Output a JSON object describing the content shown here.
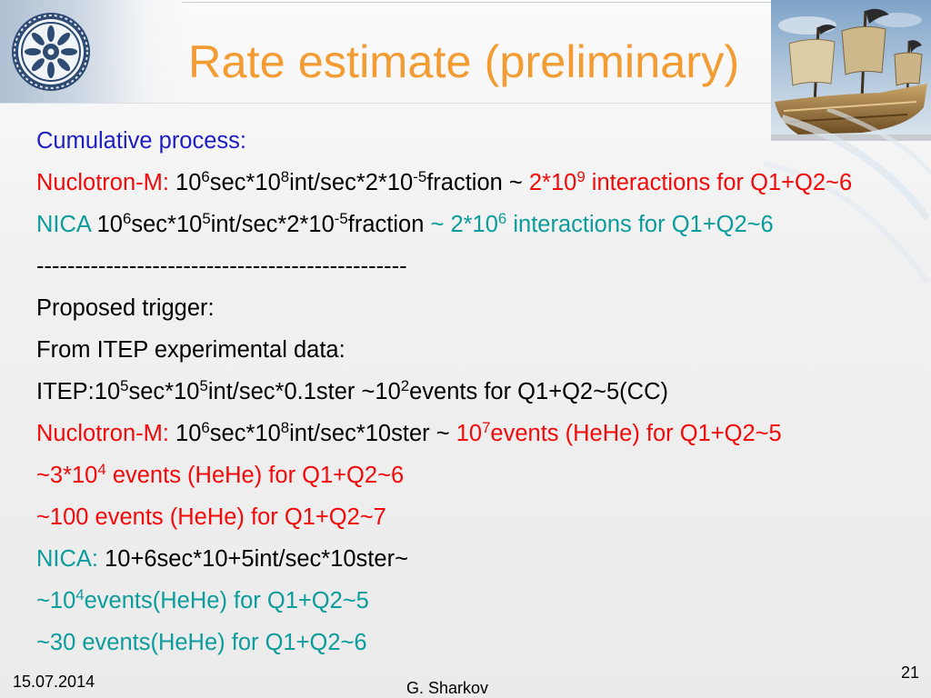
{
  "slide": {
    "title": "Rate estimate (preliminary)",
    "lines": [
      {
        "segments": [
          {
            "text": "Cumulative process:",
            "color": "blue"
          }
        ]
      },
      {
        "segments": [
          {
            "text": "Nuclotron-M: ",
            "color": "red"
          },
          {
            "text": "10",
            "color": "black"
          },
          {
            "text": "6",
            "color": "black",
            "sup": true
          },
          {
            "text": "sec*10",
            "color": "black"
          },
          {
            "text": "8",
            "color": "black",
            "sup": true
          },
          {
            "text": "int/sec*2*10",
            "color": "black"
          },
          {
            "text": "-5",
            "color": "black",
            "sup": true
          },
          {
            "text": "fraction ~ ",
            "color": "black"
          },
          {
            "text": "2*10",
            "color": "red"
          },
          {
            "text": "9",
            "color": "red",
            "sup": true
          },
          {
            "text": " interactions for Q1+Q2~6",
            "color": "red"
          }
        ]
      },
      {
        "segments": [
          {
            "text": "NICA ",
            "color": "teal"
          },
          {
            "text": "10",
            "color": "black"
          },
          {
            "text": "6",
            "color": "black",
            "sup": true
          },
          {
            "text": "sec*10",
            "color": "black"
          },
          {
            "text": "5",
            "color": "black",
            "sup": true
          },
          {
            "text": "int/sec*2*10",
            "color": "black"
          },
          {
            "text": "-5",
            "color": "black",
            "sup": true
          },
          {
            "text": "fraction ",
            "color": "black"
          },
          {
            "text": "~ 2*10",
            "color": "teal"
          },
          {
            "text": "6",
            "color": "teal",
            "sup": true
          },
          {
            "text": " interactions for Q1+Q2~6",
            "color": "teal"
          }
        ]
      },
      {
        "segments": [
          {
            "text": "------------------------------------------------",
            "color": "black"
          }
        ]
      },
      {
        "segments": [
          {
            "text": "Proposed trigger:",
            "color": "black"
          }
        ]
      },
      {
        "segments": [
          {
            "text": "From ITEP experimental data:",
            "color": "black"
          }
        ]
      },
      {
        "segments": [
          {
            "text": "ITEP:10",
            "color": "black"
          },
          {
            "text": "5",
            "color": "black",
            "sup": true
          },
          {
            "text": "sec*10",
            "color": "black"
          },
          {
            "text": "5",
            "color": "black",
            "sup": true
          },
          {
            "text": "int/sec*0.1ster ~10",
            "color": "black"
          },
          {
            "text": "2",
            "color": "black",
            "sup": true
          },
          {
            "text": "events for Q1+Q2~5(CC)",
            "color": "black"
          }
        ]
      },
      {
        "segments": [
          {
            "text": "Nuclotron-M: ",
            "color": "red"
          },
          {
            "text": "10",
            "color": "black"
          },
          {
            "text": "6",
            "color": "black",
            "sup": true
          },
          {
            "text": "sec*10",
            "color": "black"
          },
          {
            "text": "8",
            "color": "black",
            "sup": true
          },
          {
            "text": "int/sec*10ster ~ ",
            "color": "black"
          },
          {
            "text": "10",
            "color": "red"
          },
          {
            "text": "7",
            "color": "red",
            "sup": true
          },
          {
            "text": "events (HeHe) for Q1+Q2~5",
            "color": "red"
          }
        ]
      },
      {
        "segments": [
          {
            "text": "~3*10",
            "color": "red"
          },
          {
            "text": "4",
            "color": "red",
            "sup": true
          },
          {
            "text": " events (HeHe) for Q1+Q2~6",
            "color": "red"
          }
        ]
      },
      {
        "segments": [
          {
            "text": "~100 events (HeHe) for Q1+Q2~7",
            "color": "red"
          }
        ]
      },
      {
        "segments": [
          {
            "text": "NICA: ",
            "color": "teal"
          },
          {
            "text": "10+6sec*10+5int/sec*10ster~",
            "color": "black"
          }
        ]
      },
      {
        "segments": [
          {
            "text": "~10",
            "color": "teal"
          },
          {
            "text": "4",
            "color": "teal",
            "sup": true
          },
          {
            "text": "events(HeHe) for Q1+Q2~5",
            "color": "teal"
          }
        ]
      },
      {
        "segments": [
          {
            "text": "~30 events(HeHe) for Q1+Q2~6",
            "color": "teal"
          }
        ]
      }
    ],
    "footer": {
      "date": "15.07.2014",
      "author": "G. Sharkov",
      "page_number": "21"
    }
  },
  "colors": {
    "title": "#F39C34",
    "blue": "#1E1EC0",
    "red": "#F20A0A",
    "teal": "#0C9C9C",
    "black": "#000000"
  },
  "images": {
    "logo": "institute-emblem",
    "header_photo": "sailing-ship-sculpture"
  }
}
